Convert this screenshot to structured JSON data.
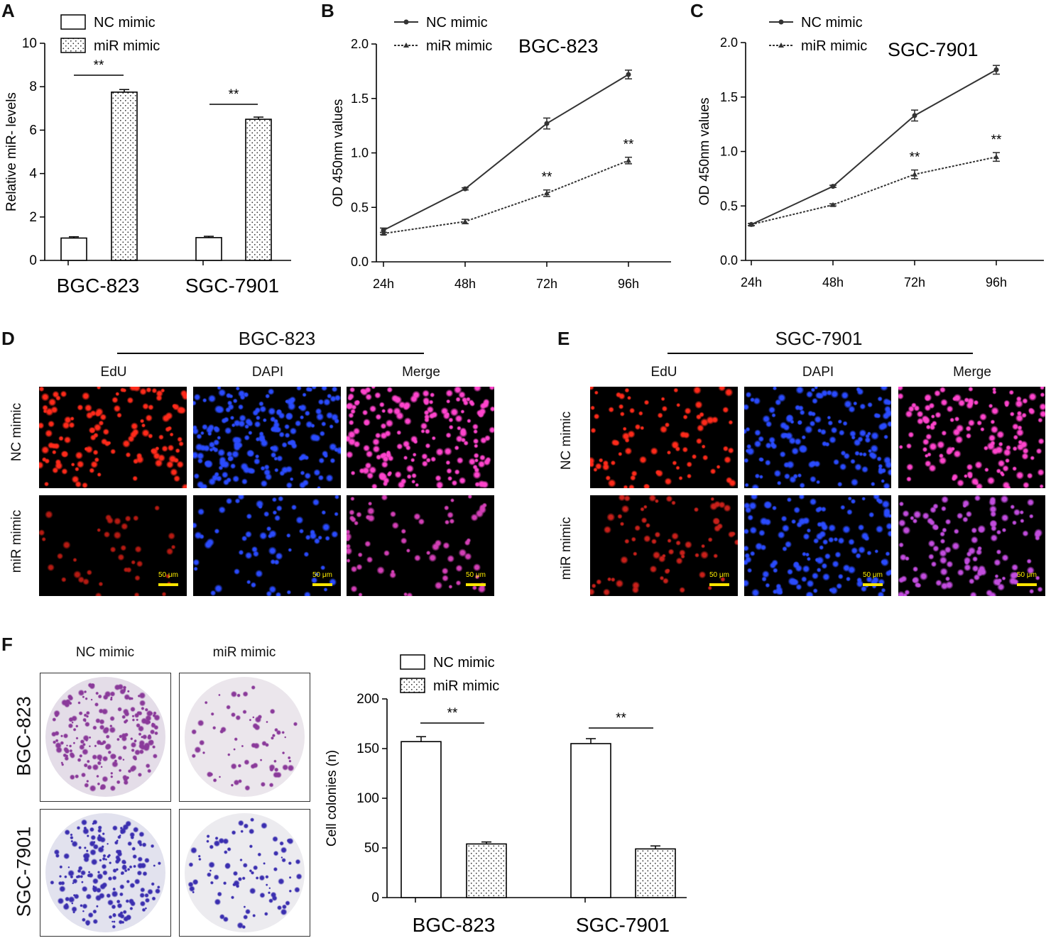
{
  "panels": {
    "a": "A",
    "b": "B",
    "c": "C",
    "d": "D",
    "e": "E",
    "f": "F"
  },
  "chart_data": [
    {
      "panel": "A",
      "type": "bar",
      "categories": [
        "BGC-823",
        "SGC-7901"
      ],
      "series": [
        {
          "name": "NC mimic",
          "values": [
            1.03,
            1.05
          ],
          "errors": [
            0.06,
            0.06
          ],
          "fill": "white"
        },
        {
          "name": "miR mimic",
          "values": [
            7.75,
            6.5
          ],
          "errors": [
            0.12,
            0.1
          ],
          "fill": "dotted"
        }
      ],
      "ylabel": "Relative miR- levels",
      "ylim": [
        0,
        10
      ],
      "yticks": [
        "0",
        "2",
        "4",
        "6",
        "8",
        "10"
      ],
      "significance": [
        "**",
        "**"
      ],
      "legend": "top"
    },
    {
      "panel": "B",
      "type": "line",
      "title": "BGC-823",
      "x": [
        "24h",
        "48h",
        "72h",
        "96h"
      ],
      "series": [
        {
          "name": "NC mimic",
          "values": [
            0.29,
            0.67,
            1.27,
            1.72
          ],
          "errors": [
            0.02,
            0.01,
            0.05,
            0.04
          ],
          "style": "solid"
        },
        {
          "name": "miR mimic",
          "values": [
            0.26,
            0.37,
            0.63,
            0.93
          ],
          "errors": [
            0.01,
            0.02,
            0.03,
            0.03
          ],
          "style": "dashed"
        }
      ],
      "ylabel": "OD 450nm values",
      "ylim": [
        0,
        2.0
      ],
      "yticks": [
        "0.0",
        "0.5",
        "1.0",
        "1.5",
        "2.0"
      ],
      "significance": [
        "",
        "",
        "**",
        "**"
      ],
      "legend": "top-left"
    },
    {
      "panel": "C",
      "type": "line",
      "title": "SGC-7901",
      "x": [
        "24h",
        "48h",
        "72h",
        "96h"
      ],
      "series": [
        {
          "name": "NC mimic",
          "values": [
            0.33,
            0.68,
            1.33,
            1.75
          ],
          "errors": [
            0.01,
            0.01,
            0.05,
            0.04
          ],
          "style": "solid"
        },
        {
          "name": "miR mimic",
          "values": [
            0.33,
            0.51,
            0.79,
            0.95
          ],
          "errors": [
            0.01,
            0.01,
            0.04,
            0.04
          ],
          "style": "dashed"
        }
      ],
      "ylabel": "OD 450nm values",
      "ylim": [
        0,
        2.0
      ],
      "yticks": [
        "0.0",
        "0.5",
        "1.0",
        "1.5",
        "2.0"
      ],
      "significance": [
        "",
        "",
        "**",
        "**"
      ],
      "legend": "top-left"
    },
    {
      "panel": "F",
      "type": "bar",
      "categories": [
        "BGC-823",
        "SGC-7901"
      ],
      "series": [
        {
          "name": "NC mimic",
          "values": [
            157,
            155
          ],
          "errors": [
            5,
            5
          ],
          "fill": "white"
        },
        {
          "name": "miR mimic",
          "values": [
            54,
            49
          ],
          "errors": [
            2,
            3
          ],
          "fill": "dotted"
        }
      ],
      "ylabel": "Cell colonies (n)",
      "ylim": [
        0,
        200
      ],
      "yticks": [
        "0",
        "50",
        "100",
        "150",
        "200"
      ],
      "significance": [
        "**",
        "**"
      ],
      "legend": "top"
    }
  ],
  "microscopy": {
    "d_title": "BGC-823",
    "e_title": "SGC-7901",
    "columns": [
      "EdU",
      "DAPI",
      "Merge"
    ],
    "rows": [
      "NC mimic",
      "miR mimic"
    ],
    "scale_label": "50 μm"
  },
  "colony": {
    "columns": [
      "NC mimic",
      "miR mimic"
    ],
    "rows": [
      "BGC-823",
      "SGC-7901"
    ]
  },
  "colors": {
    "edu": "#ff2a1a",
    "dapi": "#2a4bff",
    "merge": "#ff44cc",
    "crystal_violet_bgc": "#8a3a9a",
    "crystal_violet_sgc": "#3b2fb0",
    "scale_bar": "#ffe600"
  }
}
